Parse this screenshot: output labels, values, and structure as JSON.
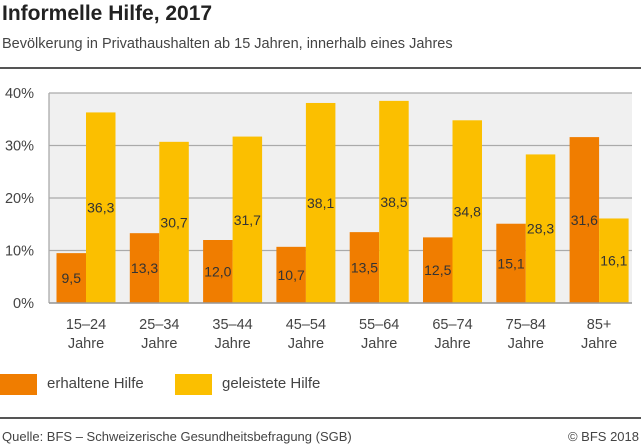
{
  "header": {
    "title": "Informelle Hilfe, 2017",
    "subtitle": "Bevölkerung in Privathaushalten ab 15 Jahren, innerhalb eines Jahres"
  },
  "chart_data": {
    "type": "bar",
    "categories": [
      [
        "15–24",
        "Jahre"
      ],
      [
        "25–34",
        "Jahre"
      ],
      [
        "35–44",
        "Jahre"
      ],
      [
        "45–54",
        "Jahre"
      ],
      [
        "55–64",
        "Jahre"
      ],
      [
        "65–74",
        "Jahre"
      ],
      [
        "75–84",
        "Jahre"
      ],
      [
        "85+",
        "Jahre"
      ]
    ],
    "series": [
      {
        "name": "erhaltene Hilfe",
        "color": "#f07d00",
        "values": [
          9.5,
          13.3,
          12.0,
          10.7,
          13.5,
          12.5,
          15.1,
          31.6
        ],
        "labels": [
          "9,5",
          "13,3",
          "12,0",
          "10,7",
          "13,5",
          "12,5",
          "15,1",
          "31,6"
        ]
      },
      {
        "name": "geleistete Hilfe",
        "color": "#fbbf00",
        "values": [
          36.3,
          30.7,
          31.7,
          38.1,
          38.5,
          34.8,
          28.3,
          16.1
        ],
        "labels": [
          "36,3",
          "30,7",
          "31,7",
          "38,1",
          "38,5",
          "34,8",
          "28,3",
          "16,1"
        ]
      }
    ],
    "ylim": [
      0,
      40
    ],
    "yticks": [
      "0%",
      "10%",
      "20%",
      "30%",
      "40%"
    ],
    "grid": true,
    "legend": "bottom-left"
  },
  "footer": {
    "source": "Quelle: BFS – Schweizerische Gesundheitsbefragung (SGB)",
    "copyright": "© BFS 2018"
  }
}
